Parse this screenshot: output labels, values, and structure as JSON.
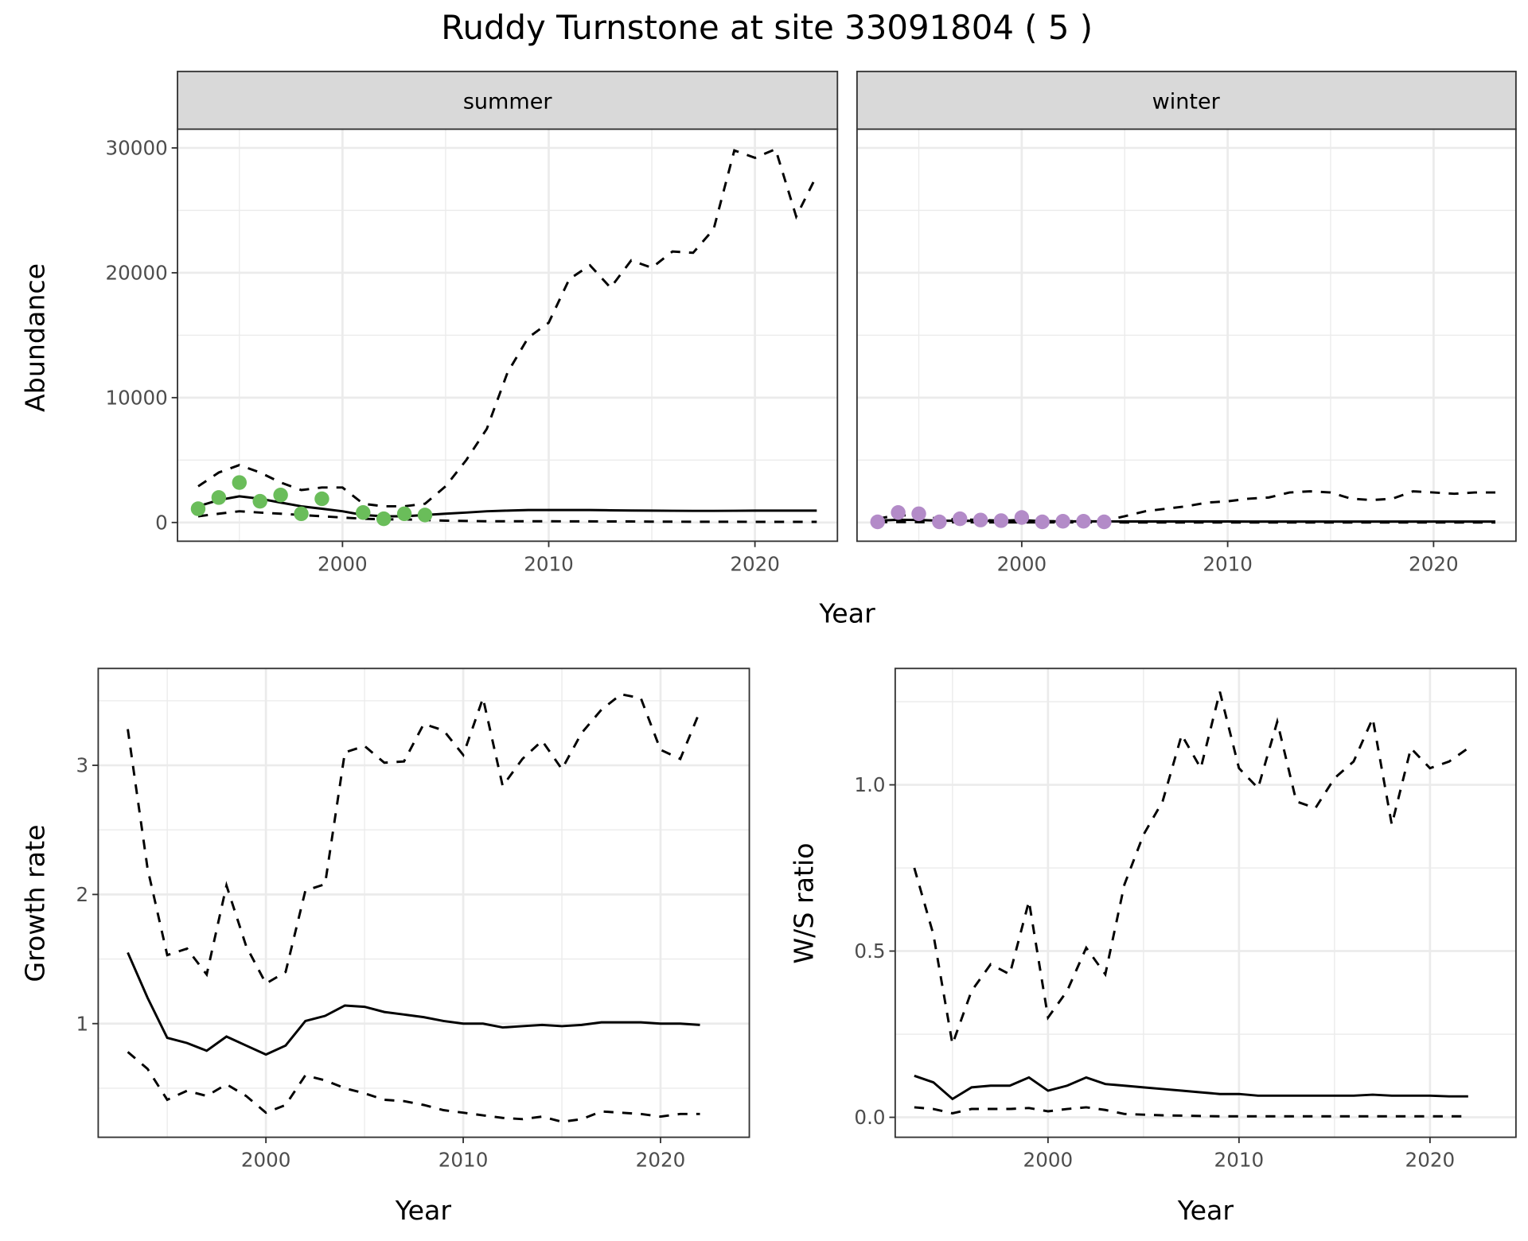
{
  "title": "Ruddy Turnstone at site 33091804 ( 5 )",
  "colors": {
    "summer_points": "#6ABD5A",
    "winter_points": "#B38BC8",
    "strip_bg": "#D9D9D9",
    "grid": "#EBEBEB"
  },
  "chart_data": [
    {
      "type": "line",
      "name": "abundance",
      "ylabel": "Abundance",
      "xlabel": "Year",
      "xlim": [
        1992,
        2024
      ],
      "ylim": [
        -1500,
        31500
      ],
      "xticks": [
        2000,
        2010,
        2020
      ],
      "xtick_labels": [
        "2000",
        "2010",
        "2020"
      ],
      "yticks": [
        0,
        10000,
        20000,
        30000
      ],
      "ytick_labels": [
        "0",
        "10000",
        "20000",
        "30000"
      ],
      "facets": [
        {
          "strip": "summer",
          "x": [
            1993,
            1994,
            1995,
            1996,
            1997,
            1998,
            1999,
            2000,
            2001,
            2002,
            2003,
            2004,
            2005,
            2006,
            2007,
            2008,
            2009,
            2010,
            2011,
            2012,
            2013,
            2014,
            2015,
            2016,
            2017,
            2018,
            2019,
            2020,
            2021,
            2022,
            2023
          ],
          "mean": [
            1300,
            1800,
            2100,
            1900,
            1600,
            1300,
            1100,
            900,
            600,
            500,
            500,
            600,
            700,
            800,
            900,
            950,
            1000,
            1000,
            1000,
            1000,
            980,
            960,
            950,
            940,
            930,
            930,
            940,
            950,
            950,
            950,
            950
          ],
          "upper": [
            2900,
            4000,
            4600,
            4000,
            3200,
            2600,
            2800,
            2800,
            1500,
            1300,
            1300,
            1500,
            2900,
            5000,
            7500,
            12000,
            14800,
            16000,
            19500,
            20600,
            18800,
            21000,
            20400,
            21700,
            21600,
            23500,
            29800,
            29200,
            29900,
            24500,
            27800
          ],
          "lower": [
            500,
            700,
            900,
            800,
            700,
            600,
            500,
            400,
            300,
            250,
            250,
            200,
            150,
            120,
            100,
            100,
            100,
            100,
            90,
            90,
            80,
            80,
            70,
            70,
            60,
            60,
            60,
            50,
            50,
            50,
            50
          ],
          "points": {
            "x": [
              1993,
              1994,
              1995,
              1996,
              1997,
              1998,
              1999,
              2001,
              2002,
              2003,
              2004
            ],
            "y": [
              1100,
              2000,
              3200,
              1700,
              2200,
              700,
              1900,
              800,
              300,
              700,
              600
            ]
          }
        },
        {
          "strip": "winter",
          "x": [
            1993,
            1994,
            1995,
            1996,
            1997,
            1998,
            1999,
            2000,
            2001,
            2002,
            2003,
            2004,
            2005,
            2006,
            2007,
            2008,
            2009,
            2010,
            2011,
            2012,
            2013,
            2014,
            2015,
            2016,
            2017,
            2018,
            2019,
            2020,
            2021,
            2022,
            2023
          ],
          "mean": [
            150,
            220,
            200,
            150,
            140,
            130,
            120,
            120,
            100,
            90,
            90,
            90,
            80,
            80,
            80,
            80,
            80,
            80,
            75,
            75,
            75,
            75,
            75,
            75,
            75,
            75,
            75,
            75,
            75,
            75,
            75
          ],
          "upper": [
            300,
            600,
            500,
            300,
            250,
            200,
            150,
            200,
            100,
            100,
            100,
            150,
            500,
            900,
            1100,
            1300,
            1600,
            1700,
            1900,
            2000,
            2400,
            2500,
            2400,
            1900,
            1800,
            1900,
            2500,
            2400,
            2300,
            2400,
            2400
          ],
          "lower": [
            30,
            40,
            30,
            20,
            20,
            15,
            15,
            15,
            10,
            10,
            10,
            10,
            5,
            5,
            5,
            5,
            5,
            5,
            5,
            5,
            5,
            5,
            5,
            5,
            5,
            5,
            5,
            5,
            5,
            5,
            5
          ],
          "points": {
            "x": [
              1993,
              1994,
              1995,
              1996,
              1997,
              1998,
              1999,
              2000,
              2001,
              2002,
              2003,
              2004
            ],
            "y": [
              50,
              800,
              700,
              50,
              300,
              200,
              150,
              400,
              50,
              100,
              100,
              50
            ]
          }
        }
      ]
    },
    {
      "type": "line",
      "name": "growth",
      "ylabel": "Growth rate",
      "xlabel": "Year",
      "xlim": [
        1991.5,
        2024.5
      ],
      "ylim": [
        0.12,
        3.75
      ],
      "xticks": [
        2000,
        2010,
        2020
      ],
      "xtick_labels": [
        "2000",
        "2010",
        "2020"
      ],
      "yticks": [
        1,
        2,
        3
      ],
      "ytick_labels": [
        "1",
        "2",
        "3"
      ],
      "x": [
        1993,
        1994,
        1995,
        1996,
        1997,
        1998,
        1999,
        2000,
        2001,
        2002,
        2003,
        2004,
        2005,
        2006,
        2007,
        2008,
        2009,
        2010,
        2011,
        2012,
        2013,
        2014,
        2015,
        2016,
        2017,
        2018,
        2019,
        2020,
        2021,
        2022
      ],
      "mean": [
        1.55,
        1.2,
        0.89,
        0.85,
        0.79,
        0.9,
        0.83,
        0.76,
        0.83,
        1.02,
        1.06,
        1.14,
        1.13,
        1.09,
        1.07,
        1.05,
        1.02,
        1.0,
        1.0,
        0.97,
        0.98,
        0.99,
        0.98,
        0.99,
        1.01,
        1.01,
        1.01,
        1.0,
        1.0,
        0.99
      ],
      "upper": [
        3.28,
        2.2,
        1.53,
        1.58,
        1.38,
        2.07,
        1.6,
        1.31,
        1.4,
        2.03,
        2.08,
        3.1,
        3.15,
        3.02,
        3.03,
        3.32,
        3.27,
        3.08,
        3.52,
        2.84,
        3.05,
        3.19,
        2.97,
        3.25,
        3.43,
        3.55,
        3.52,
        3.12,
        3.05,
        3.42
      ],
      "lower": [
        0.78,
        0.65,
        0.41,
        0.48,
        0.44,
        0.53,
        0.44,
        0.31,
        0.37,
        0.6,
        0.56,
        0.5,
        0.46,
        0.41,
        0.4,
        0.37,
        0.33,
        0.31,
        0.29,
        0.27,
        0.26,
        0.28,
        0.24,
        0.26,
        0.32,
        0.31,
        0.3,
        0.28,
        0.3,
        0.3
      ]
    },
    {
      "type": "line",
      "name": "ws_ratio",
      "ylabel": "W/S ratio",
      "xlabel": "Year",
      "xlim": [
        1992,
        2024.5
      ],
      "ylim": [
        -0.06,
        1.35
      ],
      "xticks": [
        2000,
        2010,
        2020
      ],
      "xtick_labels": [
        "2000",
        "2010",
        "2020"
      ],
      "yticks": [
        0,
        0.5,
        1
      ],
      "ytick_labels": [
        "0.0",
        "0.5",
        "1.0"
      ],
      "x": [
        1993,
        1994,
        1995,
        1996,
        1997,
        1998,
        1999,
        2000,
        2001,
        2002,
        2003,
        2004,
        2005,
        2006,
        2007,
        2008,
        2009,
        2010,
        2011,
        2012,
        2013,
        2014,
        2015,
        2016,
        2017,
        2018,
        2019,
        2020,
        2021,
        2022
      ],
      "mean": [
        0.125,
        0.105,
        0.055,
        0.09,
        0.095,
        0.095,
        0.12,
        0.08,
        0.095,
        0.12,
        0.1,
        0.095,
        0.09,
        0.085,
        0.08,
        0.075,
        0.07,
        0.07,
        0.065,
        0.065,
        0.065,
        0.065,
        0.065,
        0.065,
        0.068,
        0.065,
        0.065,
        0.065,
        0.063,
        0.063
      ],
      "upper": [
        0.75,
        0.55,
        0.22,
        0.38,
        0.46,
        0.43,
        0.65,
        0.3,
        0.38,
        0.51,
        0.43,
        0.7,
        0.85,
        0.95,
        1.15,
        1.05,
        1.28,
        1.05,
        0.99,
        1.19,
        0.95,
        0.93,
        1.02,
        1.07,
        1.2,
        0.88,
        1.11,
        1.05,
        1.07,
        1.11
      ],
      "lower": [
        0.03,
        0.025,
        0.012,
        0.025,
        0.025,
        0.025,
        0.028,
        0.018,
        0.025,
        0.03,
        0.022,
        0.01,
        0.008,
        0.006,
        0.005,
        0.004,
        0.003,
        0.003,
        0.003,
        0.003,
        0.003,
        0.003,
        0.003,
        0.003,
        0.003,
        0.003,
        0.003,
        0.003,
        0.003,
        0.003
      ]
    }
  ]
}
